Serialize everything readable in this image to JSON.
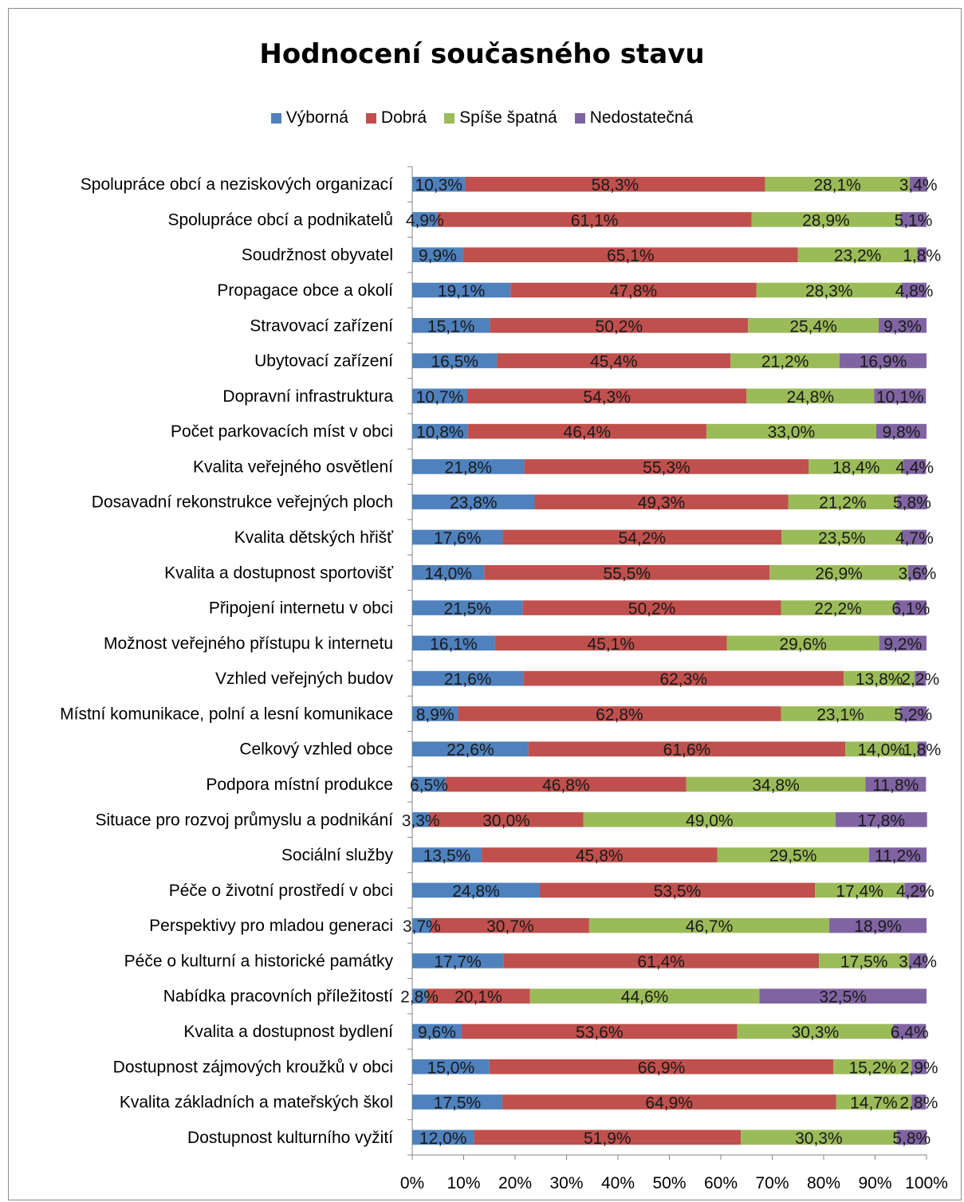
{
  "chart_data": {
    "type": "bar",
    "orientation": "horizontal",
    "stacked": true,
    "percent_stacked": true,
    "title": "Hodnocení současného stavu",
    "legend_position": "top",
    "xlim": [
      0,
      100
    ],
    "x_ticks": [
      "0%",
      "10%",
      "20%",
      "30%",
      "40%",
      "50%",
      "60%",
      "70%",
      "80%",
      "90%",
      "100%"
    ],
    "colors": [
      "#4f81bd",
      "#c0504d",
      "#9bbb59",
      "#8064a2"
    ],
    "categories": [
      "Spolupráce obcí a neziskových organizací",
      "Spolupráce obcí a podnikatelů",
      "Soudržnost obyvatel",
      "Propagace obce a okolí",
      "Stravovací zařízení",
      "Ubytovací zařízení",
      "Dopravní infrastruktura",
      "Počet parkovacích míst v obci",
      "Kvalita veřejného osvětlení",
      "Dosavadní rekonstrukce veřejných ploch",
      "Kvalita dětských hřišť",
      "Kvalita a dostupnost sportovišť",
      "Připojení internetu v obci",
      "Možnost veřejného přístupu k internetu",
      "Vzhled veřejných budov",
      "Místní komunikace, polní a lesní komunikace",
      "Celkový vzhled obce",
      "Podpora místní produkce",
      "Situace pro rozvoj průmyslu a podnikání",
      "Sociální služby",
      "Péče o životní prostředí v obci",
      "Perspektivy pro mladou generaci",
      "Péče o kulturní a historické památky",
      "Nabídka pracovních příležitostí",
      "Kvalita a dostupnost bydlení",
      "Dostupnost zájmových kroužků v obci",
      "Kvalita základních a mateřských škol",
      "Dostupnost kulturního vyžití"
    ],
    "series": [
      {
        "name": "Výborná",
        "values": [
          10.3,
          4.9,
          9.9,
          19.1,
          15.1,
          16.5,
          10.7,
          10.8,
          21.8,
          23.8,
          17.6,
          14.0,
          21.5,
          16.1,
          21.6,
          8.9,
          22.6,
          6.5,
          3.3,
          13.5,
          24.8,
          3.7,
          17.7,
          2.8,
          9.6,
          15.0,
          17.5,
          12.0
        ],
        "labels": [
          "10,3%",
          "4,9%",
          "9,9%",
          "19,1%",
          "15,1%",
          "16,5%",
          "10,7%",
          "10,8%",
          "21,8%",
          "23,8%",
          "17,6%",
          "14,0%",
          "21,5%",
          "16,1%",
          "21,6%",
          "8,9%",
          "22,6%",
          "6,5%",
          "3,3%",
          "13,5%",
          "24,8%",
          "3,7%",
          "17,7%",
          "2,8%",
          "9,6%",
          "15,0%",
          "17,5%",
          "12,0%"
        ]
      },
      {
        "name": "Dobrá",
        "values": [
          58.3,
          61.1,
          65.1,
          47.8,
          50.2,
          45.4,
          54.3,
          46.4,
          55.3,
          49.3,
          54.2,
          55.5,
          50.2,
          45.1,
          62.3,
          62.8,
          61.6,
          46.8,
          30.0,
          45.8,
          53.5,
          30.7,
          61.4,
          20.1,
          53.6,
          66.9,
          64.9,
          51.9
        ],
        "labels": [
          "58,3%",
          "61,1%",
          "65,1%",
          "47,8%",
          "50,2%",
          "45,4%",
          "54,3%",
          "46,4%",
          "55,3%",
          "49,3%",
          "54,2%",
          "55,5%",
          "50,2%",
          "45,1%",
          "62,3%",
          "62,8%",
          "61,6%",
          "46,8%",
          "30,0%",
          "45,8%",
          "53,5%",
          "30,7%",
          "61,4%",
          "20,1%",
          "53,6%",
          "66,9%",
          "64,9%",
          "51,9%"
        ]
      },
      {
        "name": "Spíše špatná",
        "values": [
          28.1,
          28.9,
          23.2,
          28.3,
          25.4,
          21.2,
          24.8,
          33.0,
          18.4,
          21.2,
          23.5,
          26.9,
          22.2,
          29.6,
          13.8,
          23.1,
          14.0,
          34.8,
          49.0,
          29.5,
          17.4,
          46.7,
          17.5,
          44.6,
          30.3,
          15.2,
          14.7,
          30.3
        ],
        "labels": [
          "28,1%",
          "28,9%",
          "23,2%",
          "28,3%",
          "25,4%",
          "21,2%",
          "24,8%",
          "33,0%",
          "18,4%",
          "21,2%",
          "23,5%",
          "26,9%",
          "22,2%",
          "29,6%",
          "13,8%",
          "23,1%",
          "14,0%",
          "34,8%",
          "49,0%",
          "29,5%",
          "17,4%",
          "46,7%",
          "17,5%",
          "44,6%",
          "30,3%",
          "15,2%",
          "14,7%",
          "30,3%"
        ]
      },
      {
        "name": "Nedostatečná",
        "values": [
          3.4,
          5.1,
          1.8,
          4.8,
          9.3,
          16.9,
          10.1,
          9.8,
          4.4,
          5.8,
          4.7,
          3.6,
          6.1,
          9.2,
          2.2,
          5.2,
          1.8,
          11.8,
          17.8,
          11.2,
          4.2,
          18.9,
          3.4,
          32.5,
          6.4,
          2.9,
          2.8,
          5.8
        ],
        "labels": [
          "3,4%",
          "5,1%",
          "1,8%",
          "4,8%",
          "9,3%",
          "16,9%",
          "10,1%",
          "9,8%",
          "4,4%",
          "5,8%",
          "4,7%",
          "3,6%",
          "6,1%",
          "9,2%",
          "2,2%",
          "5,2%",
          "1,8%",
          "11,8%",
          "17,8%",
          "11,2%",
          "4,2%",
          "18,9%",
          "3,4%",
          "32,5%",
          "6,4%",
          "2,9%",
          "2,8%",
          "5,8%"
        ]
      }
    ]
  }
}
